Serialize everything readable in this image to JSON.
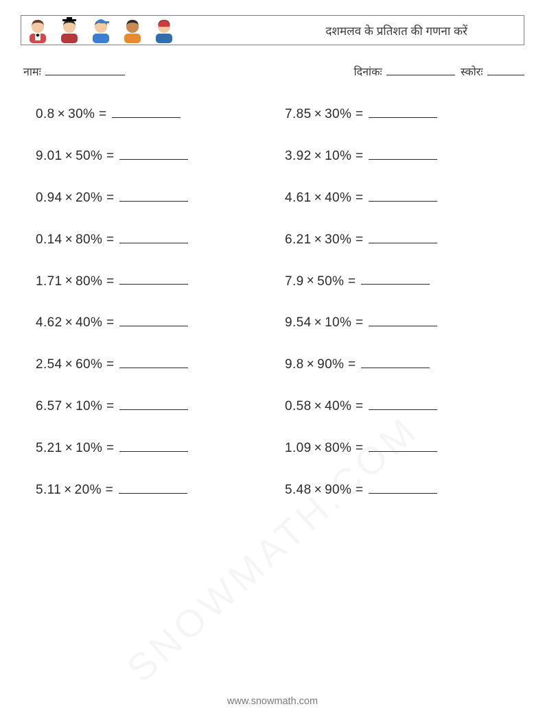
{
  "header": {
    "title": "दशमलव के प्रतिशत की गणना करें",
    "avatars": [
      {
        "name": "avatar-boy-bowtie",
        "skin": "#f4c9a4",
        "hair": "#6b3e26",
        "top1": "#d94848",
        "top2": "#ffffff",
        "accent": "#000000"
      },
      {
        "name": "avatar-girl-gradcap",
        "skin": "#f4c9a4",
        "hair": "#2b2b2b",
        "top1": "#b23a3a",
        "top2": "#b23a3a",
        "accent": "#000000"
      },
      {
        "name": "avatar-boy-cap",
        "skin": "#f4c9a4",
        "hair": "#3a3a3a",
        "top1": "#3b7fd1",
        "top2": "#3b7fd1",
        "accent": "#cf3d3d"
      },
      {
        "name": "avatar-child-orange",
        "skin": "#c98a4f",
        "hair": "#2b2b2b",
        "top1": "#e88b2e",
        "top2": "#e88b2e",
        "accent": "#e88b2e"
      },
      {
        "name": "avatar-girl-blue",
        "skin": "#f4c9a4",
        "hair": "#2b2b2b",
        "top1": "#2f6fae",
        "top2": "#2f6fae",
        "accent": "#d13a3a"
      }
    ]
  },
  "info": {
    "name_label": "नामः",
    "date_label": "दिनांकः",
    "score_label": "स्कोरः"
  },
  "multiply_sign": "×",
  "problems_left": [
    {
      "a": "0.8",
      "b": "30%"
    },
    {
      "a": "9.01",
      "b": "50%"
    },
    {
      "a": "0.94",
      "b": "20%"
    },
    {
      "a": "0.14",
      "b": "80%"
    },
    {
      "a": "1.71",
      "b": "80%"
    },
    {
      "a": "4.62",
      "b": "40%"
    },
    {
      "a": "2.54",
      "b": "60%"
    },
    {
      "a": "6.57",
      "b": "10%"
    },
    {
      "a": "5.21",
      "b": "10%"
    },
    {
      "a": "5.11",
      "b": "20%"
    }
  ],
  "problems_right": [
    {
      "a": "7.85",
      "b": "30%"
    },
    {
      "a": "3.92",
      "b": "10%"
    },
    {
      "a": "4.61",
      "b": "40%"
    },
    {
      "a": "6.21",
      "b": "30%"
    },
    {
      "a": "7.9",
      "b": "50%"
    },
    {
      "a": "9.54",
      "b": "10%"
    },
    {
      "a": "9.8",
      "b": "90%"
    },
    {
      "a": "0.58",
      "b": "40%"
    },
    {
      "a": "1.09",
      "b": "80%"
    },
    {
      "a": "5.48",
      "b": "90%"
    }
  ],
  "footer": "www.snowmath.com",
  "watermark": "SNOWMATH.COM",
  "colors": {
    "border": "#808080",
    "text": "#2a2a2a",
    "footer_text": "#7a7a7a",
    "background": "#ffffff"
  }
}
